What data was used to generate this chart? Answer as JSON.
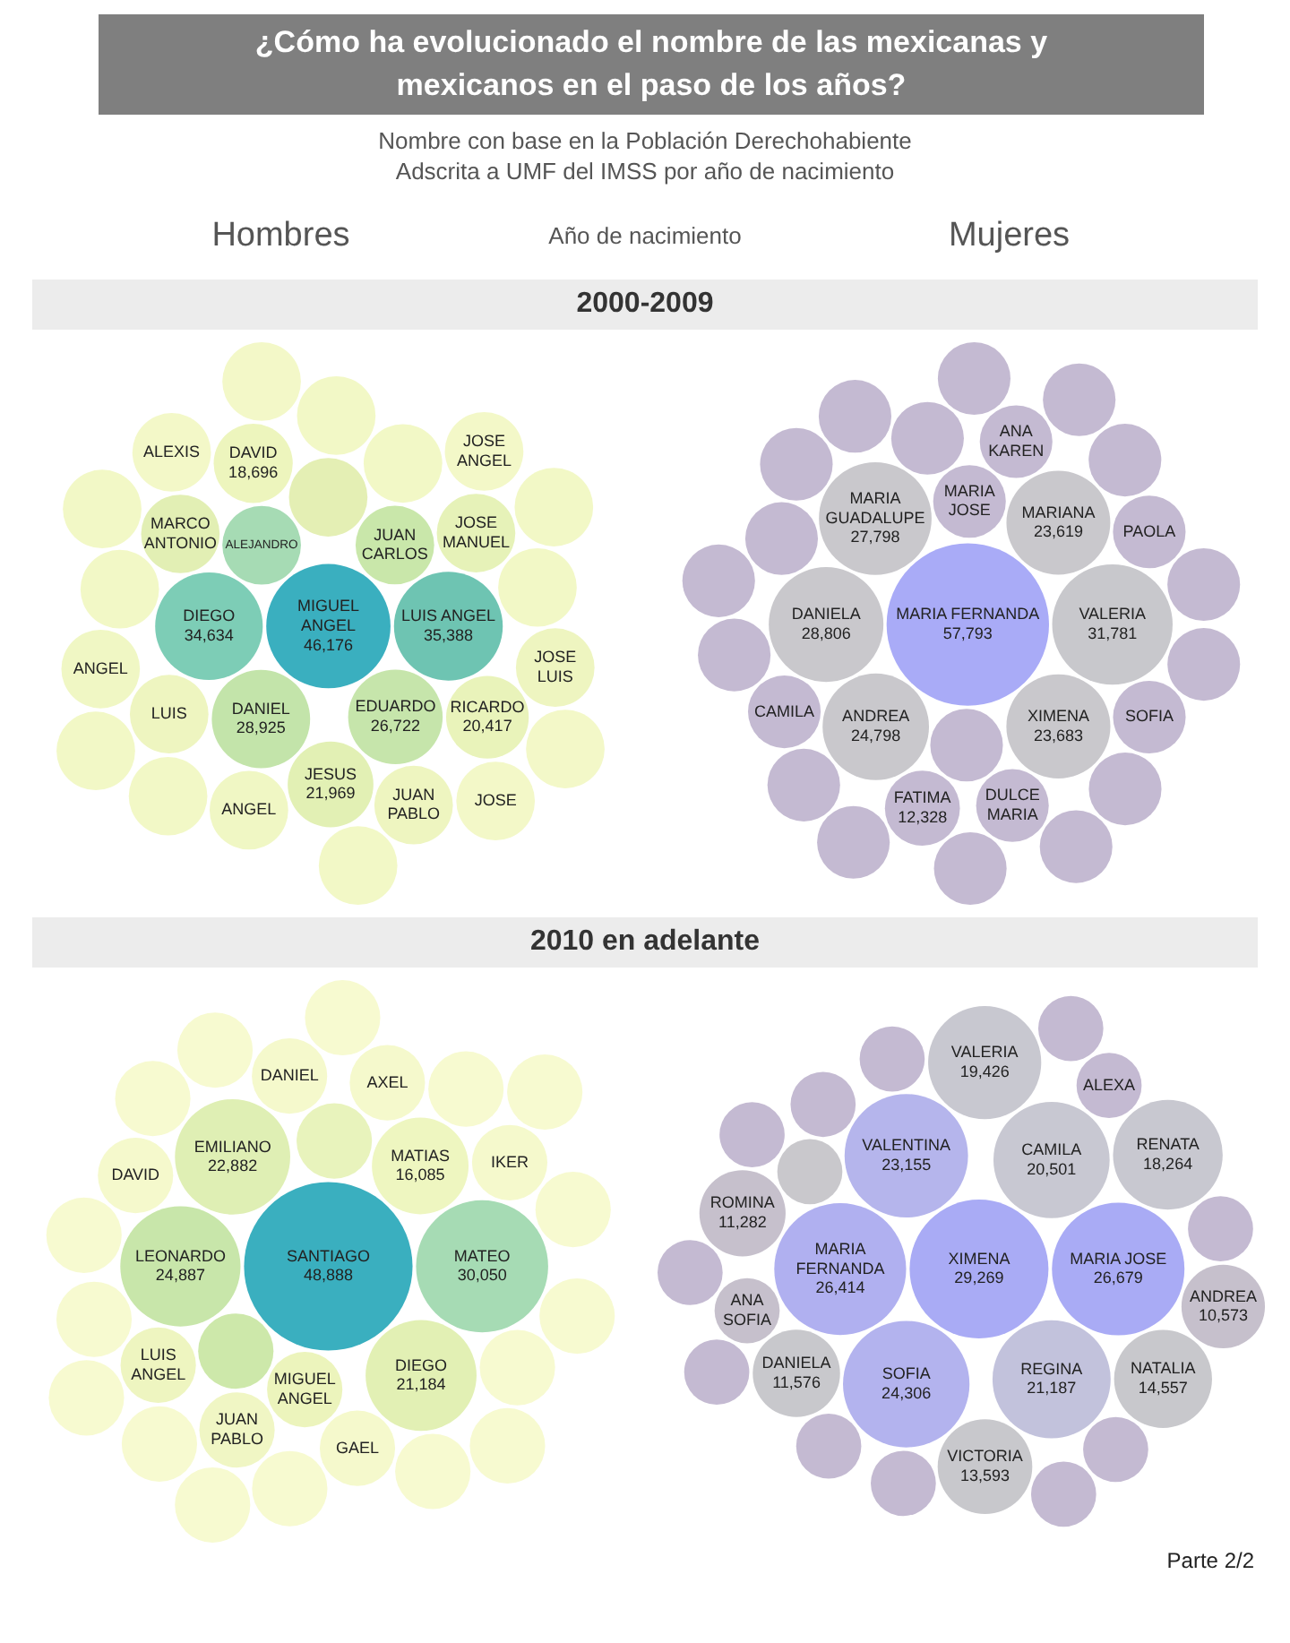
{
  "chart_data": [
    {
      "type": "other",
      "title": "¿Cómo ha evolucionado el nombre de las mexicanas y mexicanos en el paso de los años?",
      "subtitle": "Nombre con base en la Población Derechohabiente Adscrita a UMF del IMSS por año de nacimiento",
      "annotations": [
        "Hombres",
        "Año de nacimiento",
        "2000-2009"
      ],
      "value_labels": [
        "46,176",
        "35,388",
        "34,634",
        null,
        "28,925",
        "26,722",
        null,
        null,
        "21,969",
        null,
        null,
        "20,417",
        null,
        "18,696",
        null,
        null,
        null,
        null,
        null,
        null,
        null,
        null,
        null,
        null,
        null,
        null,
        null,
        null,
        null,
        null,
        null,
        null
      ],
      "categories": [
        "MIGUEL ANGEL",
        "LUIS ANGEL",
        "DIEGO",
        "ALEJANDRO",
        "DANIEL",
        "EDUARDO",
        "JUAN CARLOS",
        null,
        "JESUS",
        "MARCO ANTONIO",
        "JOSE MANUEL",
        "RICARDO",
        "LUIS",
        "DAVID",
        null,
        null,
        null,
        "JUAN PABLO",
        "ANGEL",
        "JOSE LUIS",
        "ANGEL",
        null,
        null,
        "ALEXIS",
        "JOSE ANGEL",
        "JOSE",
        null,
        null,
        null,
        null,
        null,
        null
      ],
      "values": [
        46176,
        35388,
        34634,
        null,
        28925,
        26722,
        null,
        null,
        21969,
        null,
        null,
        20417,
        null,
        18696,
        null,
        null,
        null,
        null,
        null,
        null,
        null,
        null,
        null,
        null,
        null,
        null,
        null,
        null,
        null,
        null,
        null,
        null
      ],
      "colors": [
        "#3aafbf",
        "#6ec4b2",
        "#7dcdb6",
        "#a6dbb4",
        "#c3e4aa",
        "#c6e5ab",
        "#c9e7aa",
        "#e4efb4",
        "#e2f0b4",
        "#e2efb4",
        "#e6f2b8",
        "#e9f3ba",
        "#eef5c0",
        "#edf5bd",
        "#f2f8c6",
        "#f2f8c6",
        "#f2f8c6",
        "#eef5c0",
        "#f0f7c4",
        "#eef5c0",
        "#f0f7c4",
        "#f2f8c6",
        "#f2f8c6",
        "#f3f8c8",
        "#f3f8c8",
        "#f3f8c8",
        "#f2f8c6",
        "#f2f8c6",
        "#f2f8c6",
        "#f2f8c6",
        "#f3f8c8",
        "#f3f8c8"
      ]
    },
    {
      "type": "other",
      "annotations": [
        "Mujeres"
      ],
      "value_labels": [
        "57,793",
        "31,781",
        "28,806",
        "27,798",
        "24,798",
        "23,683",
        "23,619",
        null,
        null,
        null,
        "12,328",
        null,
        null,
        null,
        null,
        null,
        null,
        null,
        null,
        null,
        null,
        null,
        null,
        null,
        null,
        null,
        null,
        null,
        null,
        null,
        null
      ],
      "categories": [
        "MARIA FERNANDA",
        "VALERIA",
        "DANIELA",
        "MARIA GUADALUPE",
        "ANDREA",
        "XIMENA",
        "MARIANA",
        null,
        "MARIA JOSE",
        "DULCE MARIA",
        "FATIMA",
        "CAMILA",
        "ANA KAREN",
        "PAOLA",
        "SOFIA",
        null,
        null,
        null,
        null,
        null,
        null,
        null,
        null,
        null,
        null,
        null,
        null,
        null,
        null,
        null,
        null
      ],
      "values": [
        57793,
        31781,
        28806,
        27798,
        24798,
        23683,
        23619,
        null,
        null,
        null,
        12328,
        null,
        null,
        null,
        null,
        null,
        null,
        null,
        null,
        null,
        null,
        null,
        null,
        null,
        null,
        null,
        null,
        null,
        null,
        null,
        null
      ],
      "colors": [
        "#a9abf7",
        "#c8c8cc",
        "#c9c8cc",
        "#c9c8cc",
        "#c9c8cc",
        "#c9c8cc",
        "#c9c8cc",
        "#c4bad2",
        "#c4bad2",
        "#c4bad2",
        "#c4bad2",
        "#c4bad2",
        "#c4bad2",
        "#c4bad2",
        "#c4bad2",
        "#c4bad2",
        "#c4bad2",
        "#c4bad2",
        "#c4bad2",
        "#c4bad2",
        "#c4bad2",
        "#c4bad2",
        "#c4bad2",
        "#c4bad2",
        "#c4bad2",
        "#c4bad2",
        "#c4bad2",
        "#c4bad2",
        "#c4bad2",
        "#c4bad2",
        "#c4bad2"
      ]
    },
    {
      "type": "other",
      "annotations": [
        "2010 en adelante"
      ],
      "value_labels": [
        "48,888",
        "30,050",
        "24,887",
        "22,882",
        null,
        "21,184",
        "16,085",
        null,
        null,
        null,
        null,
        null,
        null,
        null,
        null,
        null,
        null,
        null,
        null,
        null,
        null,
        null,
        null,
        null,
        null,
        null,
        null,
        null,
        null,
        null,
        null,
        null
      ],
      "categories": [
        "SANTIAGO",
        "MATEO",
        "LEONARDO",
        "EMILIANO",
        null,
        "DIEGO",
        "MATIAS",
        "MIGUEL ANGEL",
        null,
        "LUIS ANGEL",
        "JUAN PABLO",
        "GAEL",
        "AXEL",
        "DANIEL",
        "IKER",
        "DAVID",
        null,
        null,
        null,
        null,
        null,
        null,
        null,
        null,
        null,
        null,
        null,
        null,
        null,
        null,
        null,
        null
      ],
      "values": [
        48888,
        30050,
        24887,
        22882,
        null,
        21184,
        16085,
        null,
        null,
        null,
        null,
        null,
        null,
        null,
        null,
        null,
        null,
        null,
        null,
        null,
        null,
        null,
        null,
        null,
        null,
        null,
        null,
        null,
        null,
        null,
        null,
        null
      ],
      "colors": [
        "#3aafbf",
        "#a6dbb4",
        "#c8e6aa",
        "#dfefb4",
        "#cde8aa",
        "#e2f0b4",
        "#eef6c0",
        "#ecf4bc",
        "#e8f3bc",
        "#eef5c0",
        "#f0f6c4",
        "#f5f9cc",
        "#f5f9cc",
        "#f5f9cc",
        "#f5f9cc",
        "#f5f9cc",
        "#f7fad0",
        "#f7fad0",
        "#f7fad0",
        "#f7fad0",
        "#f7fad0",
        "#f7fad0",
        "#f7fad0",
        "#f7fad0",
        "#f7fad0",
        "#f7fad0",
        "#f7fad0",
        "#f7fad0",
        "#f7fad0",
        "#f7fad0",
        "#f7fad0",
        "#f7fad0"
      ]
    },
    {
      "type": "other",
      "annotations": [
        "Parte 2/2"
      ],
      "value_labels": [
        "29,269",
        "26,679",
        "26,414",
        "24,306",
        "23,155",
        "21,187",
        "20,501",
        "19,426",
        "18,264",
        "14,557",
        "13,593",
        null,
        "11,576",
        "11,282",
        null,
        "10,573",
        null,
        null,
        null,
        null,
        null,
        null,
        null,
        null,
        null,
        null,
        null,
        null
      ],
      "categories": [
        "XIMENA",
        "MARIA JOSE",
        "MARIA FERNANDA",
        "SOFIA",
        "VALENTINA",
        "REGINA",
        "CAMILA",
        "VALERIA",
        "RENATA",
        "NATALIA",
        "VICTORIA",
        null,
        "DANIELA",
        "ROMINA",
        "ANA SOFIA",
        "ANDREA",
        null,
        "ALEXA",
        null,
        null,
        null,
        null,
        null,
        null,
        null,
        null,
        null,
        null
      ],
      "values": [
        29269,
        26679,
        26414,
        24306,
        23155,
        21187,
        20501,
        19426,
        18264,
        14557,
        13593,
        null,
        11576,
        11282,
        null,
        10573,
        null,
        null,
        null,
        null,
        null,
        null,
        null,
        null,
        null,
        null,
        null,
        null
      ],
      "colors": [
        "#a9abf5",
        "#a9abf5",
        "#b0b0f0",
        "#b3b3ee",
        "#b5b5ec",
        "#c2c2dc",
        "#c8c8d2",
        "#c8c8d0",
        "#c8c8d0",
        "#c8c8cc",
        "#c8c8cc",
        "#c9c8cc",
        "#c8c8cc",
        "#c6c0cc",
        "#c6c0cc",
        "#c6c0cc",
        "#c4bad2",
        "#c4bad2",
        "#c4bad2",
        "#c4bad2",
        "#c4bad2",
        "#c4bad2",
        "#c4bad2",
        "#c4bad2",
        "#c4bad2",
        "#c4bad2",
        "#c4bad2",
        "#c4bad2"
      ]
    }
  ]
}
